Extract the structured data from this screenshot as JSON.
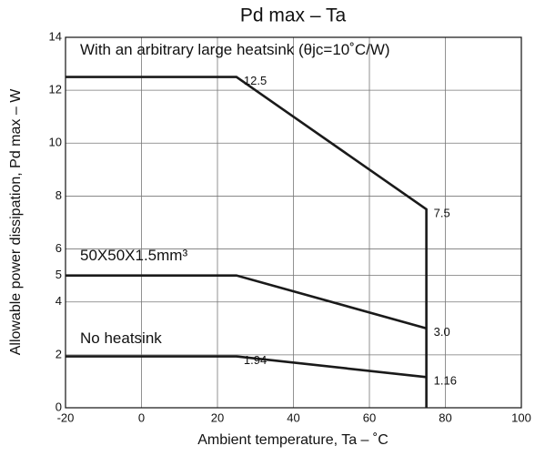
{
  "chart_data": {
    "type": "line",
    "title": "Pd max  –  Ta",
    "x_label": "Ambient temperature, Ta  – ˚C",
    "y_label": "Allowable power dissipation, Pd max  – W",
    "xlim": [
      -20,
      100
    ],
    "ylim": [
      0,
      14
    ],
    "xticks": [
      -20,
      0,
      20,
      40,
      60,
      80,
      100
    ],
    "yticks": [
      0,
      2,
      4,
      5,
      6,
      8,
      10,
      12,
      14
    ],
    "grid": true,
    "series": [
      {
        "name": "With an arbitrary large heatsink  (θjc=10˚C/W)",
        "color": "#1a1a1a",
        "x": [
          -20,
          25,
          75,
          75
        ],
        "values": [
          12.5,
          12.5,
          7.5,
          0
        ],
        "value_labels": [
          null,
          "12.5",
          "7.5",
          null
        ]
      },
      {
        "name": "50X50X1.5mm³",
        "color": "#1a1a1a",
        "x": [
          -20,
          25,
          75
        ],
        "values": [
          5,
          5,
          3
        ],
        "value_labels": [
          null,
          null,
          "3.0"
        ]
      },
      {
        "name": "No heatsink",
        "color": "#1a1a1a",
        "x": [
          -20,
          25,
          75
        ],
        "values": [
          1.94,
          1.94,
          1.16
        ],
        "value_labels": [
          null,
          "1.94",
          "1.16"
        ]
      }
    ]
  }
}
